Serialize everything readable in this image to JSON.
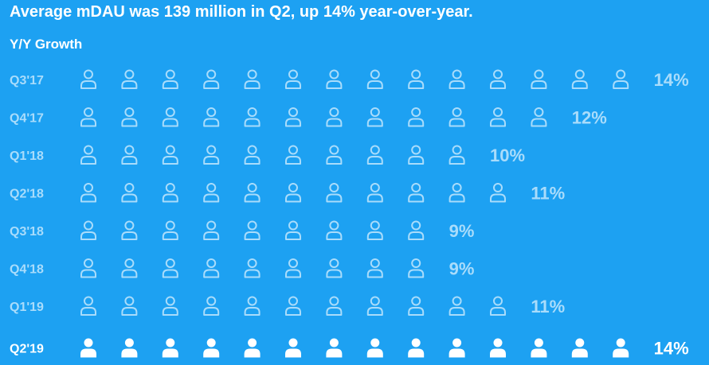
{
  "title": "Average mDAU was 139 million in Q2, up 14% year-over-year.",
  "subtitle": "Y/Y Growth",
  "colors": {
    "background": "#1da1f2",
    "past": "#a9dcfb",
    "current": "#ffffff"
  },
  "icon": "person-icon",
  "chart_data": {
    "type": "pictograph",
    "ylabel": "Y/Y Growth",
    "categories": [
      "Q3'17",
      "Q4'17",
      "Q1'18",
      "Q2'18",
      "Q3'18",
      "Q4'18",
      "Q1'19",
      "Q2'19"
    ],
    "values": [
      14,
      12,
      10,
      11,
      9,
      9,
      11,
      14
    ],
    "value_labels": [
      "14%",
      "12%",
      "10%",
      "11%",
      "9%",
      "9%",
      "11%",
      "14%"
    ],
    "units": "%",
    "highlight": "Q2'19"
  }
}
